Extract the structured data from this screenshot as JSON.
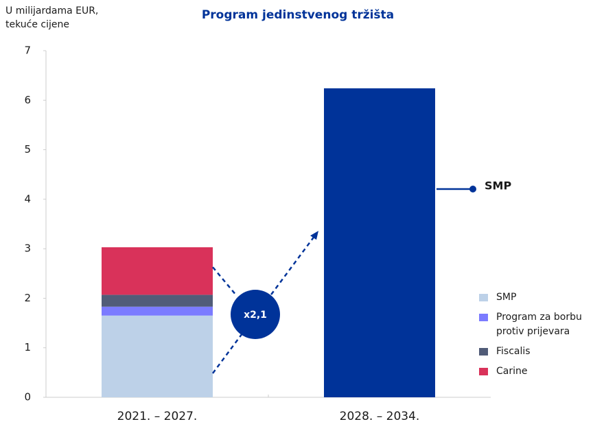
{
  "chart_data": {
    "type": "bar",
    "stacked": true,
    "title": "Program jedinstvenog tržišta",
    "y_label": "U milijardama EUR, tekuće cijene",
    "categories": [
      "2021. – 2027.",
      "2028. – 2034."
    ],
    "series": [
      {
        "name": "SMP",
        "color": "#bdd1e8",
        "point_colors": [
          "#bdd1e8",
          "#003399"
        ],
        "values": [
          1.65,
          6.24
        ]
      },
      {
        "name": "Program za borbu protiv prijevara",
        "color": "#7b7bff",
        "values": [
          0.18,
          null
        ]
      },
      {
        "name": "Fiscalis",
        "color": "#515c78",
        "values": [
          0.24,
          null
        ]
      },
      {
        "name": "Carine",
        "color": "#d9325a",
        "values": [
          0.96,
          null
        ]
      }
    ],
    "ylim": [
      0,
      7
    ],
    "yticks": [
      0,
      1,
      2,
      3,
      4,
      5,
      6,
      7
    ],
    "annotations": [
      {
        "text": "x2,1"
      },
      {
        "text": "SMP"
      }
    ]
  }
}
